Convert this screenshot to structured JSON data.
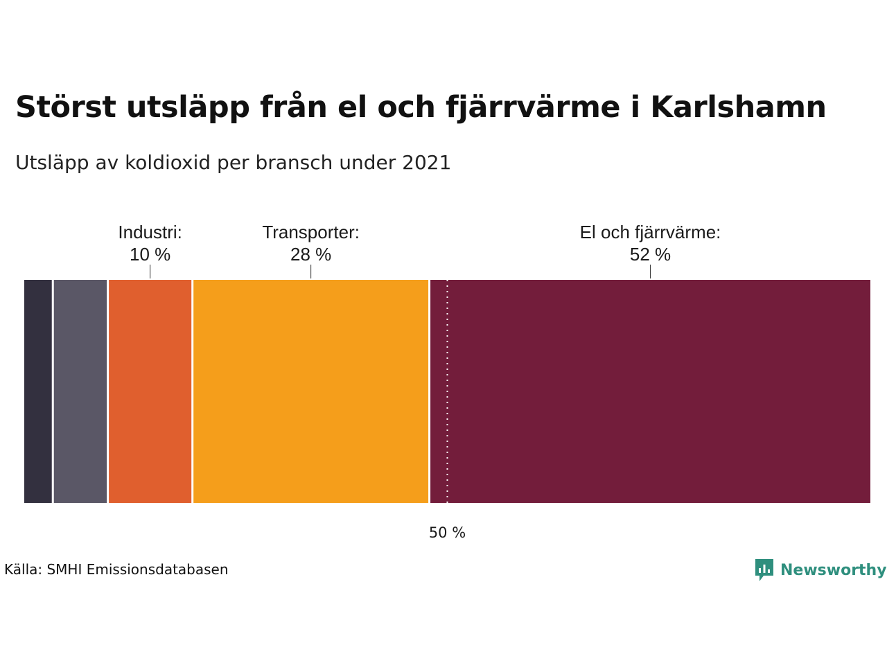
{
  "header": {
    "title": "Störst utsläpp från el och fjärrvärme i Karlshamn",
    "subtitle": "Utsläpp av koldioxid per bransch under 2021"
  },
  "footer": {
    "source": "Källa: SMHI Emissionsdatabasen",
    "brand": "Newsworthy",
    "brand_icon": "newsworthy-logo-icon",
    "brand_color": "#2f8f7e"
  },
  "chart_data": {
    "type": "bar",
    "orientation": "horizontal-stacked",
    "xlim": [
      0,
      100
    ],
    "unit": "%",
    "segments": [
      {
        "label": "",
        "value": 3.5,
        "color": "#33303f"
      },
      {
        "label": "",
        "value": 6.5,
        "color": "#5a5766"
      },
      {
        "label": "Industri:",
        "value_label": "10 %",
        "value": 10,
        "color": "#e05f2e"
      },
      {
        "label": "Transporter:",
        "value_label": "28 %",
        "value": 28,
        "color": "#f59e1b"
      },
      {
        "label": "El och fjärrvärme:",
        "value_label": "52 %",
        "value": 52,
        "color": "#731d3b"
      }
    ],
    "reference_line": {
      "value": 50,
      "label": "50 %"
    }
  }
}
